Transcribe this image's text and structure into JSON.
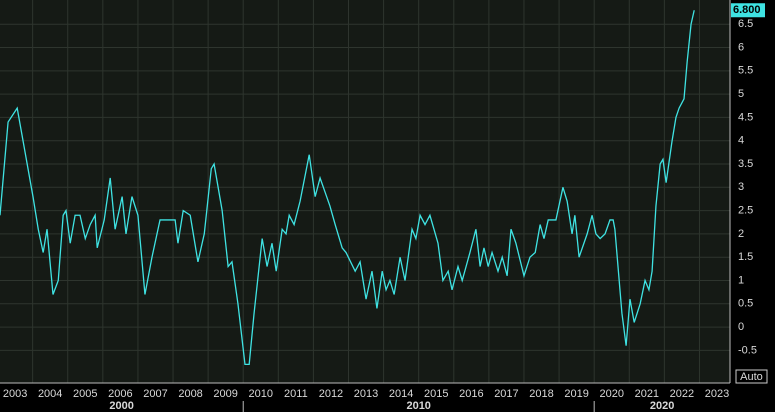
{
  "chart_data": {
    "type": "line",
    "x": [
      2003.07,
      2003.3,
      2003.56,
      2004.01,
      2004.16,
      2004.3,
      2004.41,
      2004.58,
      2004.73,
      2004.87,
      2004.95,
      2005.07,
      2005.21,
      2005.35,
      2005.5,
      2005.64,
      2005.78,
      2005.84,
      2006.04,
      2006.21,
      2006.35,
      2006.55,
      2006.66,
      2006.83,
      2007.0,
      2007.2,
      2007.4,
      2007.63,
      2008.06,
      2008.14,
      2008.29,
      2008.49,
      2008.71,
      2008.89,
      2009.09,
      2009.17,
      2009.4,
      2009.57,
      2009.68,
      2009.85,
      2010.05,
      2010.17,
      2010.31,
      2010.54,
      2010.68,
      2010.82,
      2010.94,
      2011.11,
      2011.22,
      2011.31,
      2011.45,
      2011.62,
      2011.88,
      2012.05,
      2012.19,
      2012.33,
      2012.47,
      2012.62,
      2012.82,
      2012.93,
      2013.19,
      2013.33,
      2013.5,
      2013.67,
      2013.81,
      2013.96,
      2014.07,
      2014.18,
      2014.3,
      2014.47,
      2014.61,
      2014.81,
      2014.92,
      2015.04,
      2015.18,
      2015.32,
      2015.55,
      2015.69,
      2015.84,
      2015.95,
      2016.12,
      2016.24,
      2016.46,
      2016.63,
      2016.75,
      2016.86,
      2016.98,
      2017.09,
      2017.26,
      2017.38,
      2017.52,
      2017.63,
      2017.77,
      2018.0,
      2018.17,
      2018.32,
      2018.46,
      2018.57,
      2018.69,
      2018.91,
      2019.11,
      2019.23,
      2019.37,
      2019.45,
      2019.57,
      2019.8,
      2019.94,
      2020.05,
      2020.17,
      2020.31,
      2020.45,
      2020.54,
      2020.59,
      2020.79,
      2020.91,
      2021.02,
      2021.14,
      2021.31,
      2021.45,
      2021.56,
      2021.65,
      2021.76,
      2021.88,
      2021.96,
      2022.05,
      2022.22,
      2022.33,
      2022.42,
      2022.56,
      2022.65,
      2022.76,
      2022.85
    ],
    "series": [
      {
        "color": "#3fe3e3",
        "values": [
          2.4,
          4.4,
          4.7,
          2.8,
          2.1,
          1.6,
          2.1,
          0.7,
          1.0,
          2.4,
          2.5,
          1.8,
          2.4,
          2.4,
          1.9,
          2.2,
          2.4,
          1.7,
          2.3,
          3.2,
          2.1,
          2.8,
          2.0,
          2.8,
          2.4,
          0.7,
          1.5,
          2.3,
          2.3,
          1.8,
          2.5,
          2.4,
          1.4,
          2.0,
          3.4,
          3.5,
          2.5,
          1.3,
          1.4,
          0.5,
          -0.8,
          -0.8,
          0.3,
          1.9,
          1.3,
          1.8,
          1.2,
          2.1,
          2.0,
          2.4,
          2.2,
          2.7,
          3.7,
          2.8,
          3.2,
          2.9,
          2.6,
          2.2,
          1.7,
          1.6,
          1.2,
          1.4,
          0.6,
          1.2,
          0.4,
          1.2,
          0.8,
          1.0,
          0.7,
          1.5,
          1.0,
          2.1,
          1.9,
          2.4,
          2.2,
          2.4,
          1.8,
          1.0,
          1.2,
          0.8,
          1.3,
          1.0,
          1.6,
          2.1,
          1.3,
          1.7,
          1.3,
          1.6,
          1.2,
          1.5,
          1.1,
          2.1,
          1.8,
          1.1,
          1.5,
          1.6,
          2.2,
          1.9,
          2.3,
          2.3,
          3.0,
          2.7,
          2.0,
          2.4,
          1.5,
          2.0,
          2.4,
          2.0,
          1.9,
          2.0,
          2.3,
          2.3,
          2.1,
          0.3,
          -0.4,
          0.6,
          0.1,
          0.5,
          1.0,
          0.8,
          1.2,
          2.6,
          3.5,
          3.6,
          3.1,
          4.0,
          4.5,
          4.7,
          4.9,
          5.7,
          6.5,
          6.8
        ]
      }
    ],
    "last_label": "6.800",
    "xlim": [
      2003.07,
      2023.87
    ],
    "ylim": [
      -1.2,
      7.02
    ],
    "xticks": [
      2003,
      2004,
      2005,
      2006,
      2007,
      2008,
      2009,
      2010,
      2011,
      2012,
      2013,
      2014,
      2015,
      2016,
      2017,
      2018,
      2019,
      2020,
      2021,
      2022,
      2023
    ],
    "yticks": [
      6.5,
      6,
      5.5,
      5,
      4.5,
      4,
      3.5,
      3,
      2.5,
      2,
      1.5,
      1,
      0.5,
      0,
      -0.5
    ],
    "decades": [
      "2000",
      "2010",
      "2020"
    ],
    "decade_ticks": [
      2010,
      2020
    ],
    "grid": true
  },
  "controls": {
    "auto": "Auto"
  }
}
